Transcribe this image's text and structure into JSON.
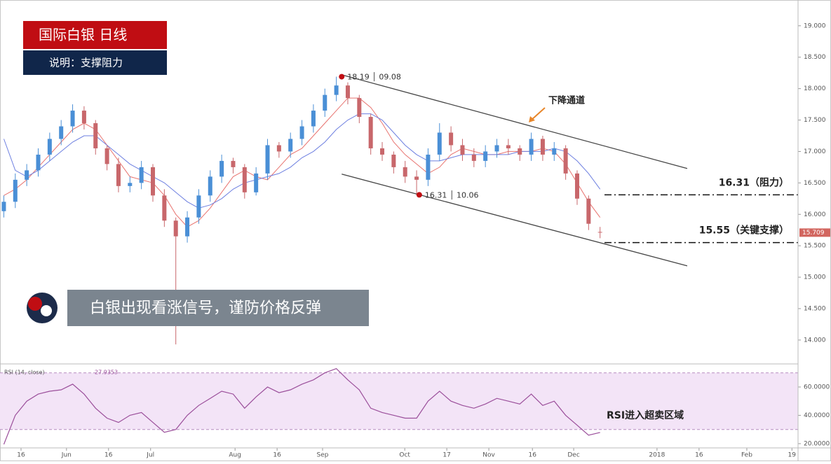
{
  "header": {
    "title": "国际白银  日线",
    "subtitle": "说明：支撑阻力"
  },
  "banner": "白银出现看涨信号，谨防价格反弹",
  "chart_data": [
    {
      "type": "candlestick",
      "x": [
        1,
        4,
        7,
        10,
        13,
        16,
        19,
        22,
        25,
        28,
        31,
        34,
        37,
        40,
        43,
        46,
        49,
        52,
        55,
        58,
        61,
        64,
        67,
        70,
        73,
        76,
        79,
        82,
        85,
        88,
        91,
        94,
        97,
        100,
        103,
        106,
        109,
        112,
        115,
        118,
        121,
        124,
        127,
        130,
        133,
        136,
        139,
        142,
        145,
        148,
        151,
        154,
        157
      ],
      "open": [
        16.05,
        16.2,
        16.55,
        16.7,
        16.95,
        17.2,
        17.4,
        17.65,
        17.45,
        17.05,
        16.8,
        16.45,
        16.5,
        16.75,
        16.3,
        15.9,
        15.65,
        15.95,
        16.3,
        16.6,
        16.85,
        16.75,
        16.35,
        16.65,
        17.1,
        17.0,
        17.2,
        17.4,
        17.65,
        17.9,
        18.05,
        17.85,
        17.55,
        17.05,
        16.95,
        16.75,
        16.6,
        16.55,
        16.95,
        17.3,
        17.1,
        16.95,
        16.85,
        17.0,
        17.1,
        17.05,
        16.95,
        17.2,
        16.95,
        17.05,
        16.65,
        16.25,
        15.72
      ],
      "high": [
        16.3,
        16.65,
        16.8,
        17.05,
        17.3,
        17.5,
        17.75,
        17.72,
        17.5,
        17.1,
        16.9,
        16.6,
        16.85,
        16.8,
        16.4,
        15.95,
        16.05,
        16.4,
        16.7,
        16.95,
        16.9,
        16.8,
        16.75,
        17.2,
        17.15,
        17.3,
        17.5,
        17.75,
        18.0,
        18.19,
        18.1,
        17.9,
        17.6,
        17.15,
        17.0,
        16.85,
        16.7,
        17.05,
        17.45,
        17.4,
        17.2,
        17.05,
        17.1,
        17.2,
        17.2,
        17.1,
        17.3,
        17.25,
        17.15,
        17.1,
        16.7,
        16.3,
        15.8
      ],
      "low": [
        15.95,
        16.1,
        16.45,
        16.6,
        16.85,
        17.1,
        17.3,
        17.35,
        16.95,
        16.7,
        16.35,
        16.35,
        16.4,
        16.2,
        15.8,
        13.93,
        15.55,
        15.85,
        16.2,
        16.5,
        16.65,
        16.25,
        16.3,
        16.55,
        16.9,
        16.9,
        17.1,
        17.3,
        17.55,
        17.8,
        17.75,
        17.45,
        16.95,
        16.85,
        16.65,
        16.5,
        16.31,
        16.45,
        16.85,
        17.0,
        16.85,
        16.75,
        16.75,
        16.9,
        16.95,
        16.85,
        16.85,
        16.85,
        16.85,
        16.55,
        16.15,
        15.75,
        15.62
      ],
      "close": [
        16.2,
        16.55,
        16.7,
        16.95,
        17.2,
        17.4,
        17.65,
        17.45,
        17.05,
        16.8,
        16.45,
        16.5,
        16.75,
        16.3,
        15.9,
        15.65,
        15.95,
        16.3,
        16.6,
        16.85,
        16.75,
        16.35,
        16.65,
        17.1,
        17.0,
        17.2,
        17.4,
        17.65,
        17.9,
        18.05,
        17.85,
        17.55,
        17.05,
        16.95,
        16.75,
        16.6,
        16.55,
        16.95,
        17.3,
        17.1,
        16.95,
        16.85,
        17.0,
        17.1,
        17.05,
        16.95,
        17.2,
        16.95,
        17.05,
        16.65,
        16.25,
        15.85,
        15.709
      ],
      "up_color": "#4a8fd6",
      "down_color": "#c8676b",
      "moving_averages": [
        {
          "color": "#e8736f",
          "values": [
            16.3,
            16.4,
            16.55,
            16.75,
            16.95,
            17.15,
            17.35,
            17.45,
            17.35,
            17.1,
            16.85,
            16.6,
            16.55,
            16.5,
            16.3,
            16.0,
            15.8,
            15.9,
            16.1,
            16.35,
            16.6,
            16.7,
            16.6,
            16.55,
            16.75,
            16.95,
            17.05,
            17.25,
            17.45,
            17.65,
            17.85,
            17.85,
            17.7,
            17.45,
            17.15,
            16.95,
            16.8,
            16.65,
            16.75,
            16.95,
            17.05,
            17.0,
            16.95,
            16.95,
            17.0,
            17.0,
            17.0,
            17.05,
            17.0,
            16.8,
            16.5,
            16.2,
            15.95
          ]
        },
        {
          "color": "#6d7fe0",
          "values": [
            17.2,
            16.7,
            16.6,
            16.7,
            16.85,
            17.0,
            17.15,
            17.25,
            17.25,
            17.1,
            16.95,
            16.8,
            16.7,
            16.6,
            16.5,
            16.35,
            16.2,
            16.1,
            16.15,
            16.25,
            16.4,
            16.5,
            16.55,
            16.6,
            16.65,
            16.75,
            16.9,
            17.0,
            17.15,
            17.35,
            17.5,
            17.6,
            17.6,
            17.5,
            17.3,
            17.1,
            16.95,
            16.85,
            16.85,
            16.9,
            16.95,
            16.95,
            16.95,
            16.95,
            16.95,
            17.0,
            17.0,
            17.0,
            17.05,
            17.0,
            16.85,
            16.65,
            16.4
          ]
        }
      ],
      "channel": [
        {
          "x": [
            89.4,
            179.8
          ],
          "y": [
            18.22,
            16.73
          ]
        },
        {
          "x": [
            89.4,
            179.8
          ],
          "y": [
            16.64,
            15.18
          ]
        }
      ],
      "channel_label": "下降通道",
      "markers": [
        {
          "x": 89.4,
          "value": 18.19,
          "label": "18.19 │ 09.08"
        },
        {
          "x": 109.7,
          "value": 16.31,
          "label": "16.31 │ 10.06"
        }
      ],
      "levels": [
        {
          "value": 16.31,
          "label": "16.31（阻力）"
        },
        {
          "value": 15.55,
          "label": "15.55（关键支撑）"
        }
      ],
      "xlim": [
        0,
        208.8
      ],
      "ylim": [
        13.62,
        19.41
      ],
      "yticks": [
        {
          "value": 14,
          "label": "14.000"
        },
        {
          "value": 14.5,
          "label": "14.500"
        },
        {
          "value": 15,
          "label": "15.000"
        },
        {
          "value": 15.5,
          "label": "15.500"
        },
        {
          "value": 16,
          "label": "16.000"
        },
        {
          "value": 16.5,
          "label": "16.500"
        },
        {
          "value": 17,
          "label": "17.000"
        },
        {
          "value": 17.5,
          "label": "17.500"
        },
        {
          "value": 18,
          "label": "18.000"
        },
        {
          "value": 18.5,
          "label": "18.500"
        },
        {
          "value": 19,
          "label": "19.000"
        }
      ]
    },
    {
      "type": "line",
      "title": "RSI (14, close)",
      "color": "#9b4f9b",
      "band": [
        30,
        70
      ],
      "band_color": "#f3e4f7",
      "annotation": "RSI进入超卖区域",
      "x": [
        1,
        4,
        7,
        10,
        13,
        16,
        19,
        22,
        25,
        28,
        31,
        34,
        37,
        40,
        43,
        46,
        49,
        52,
        55,
        58,
        61,
        64,
        67,
        70,
        73,
        76,
        79,
        82,
        85,
        88,
        91,
        94,
        97,
        100,
        103,
        106,
        109,
        112,
        115,
        118,
        121,
        124,
        127,
        130,
        133,
        136,
        139,
        142,
        145,
        148,
        151,
        154,
        157
      ],
      "values": [
        19.5,
        40,
        50,
        55,
        57,
        58,
        62,
        55,
        45,
        38,
        35,
        40,
        42,
        35,
        28,
        30,
        40,
        47,
        52,
        57,
        55,
        45,
        53,
        60,
        56,
        58,
        62,
        65,
        70,
        73,
        65,
        58,
        45,
        42,
        40,
        38,
        38,
        50,
        57,
        50,
        47,
        45,
        48,
        52,
        50,
        48,
        55,
        47,
        50,
        40,
        33,
        26,
        27.9353
      ],
      "xlim": [
        0,
        208.8
      ],
      "ylim": [
        17,
        75.3
      ],
      "yticks": [
        {
          "value": 20,
          "label": "20.0000"
        },
        {
          "value": 40,
          "label": "40.0000"
        },
        {
          "value": 60,
          "label": "60.0000"
        }
      ],
      "xticks": [
        {
          "value": 5.5,
          "label": "16"
        },
        {
          "value": 17.4,
          "label": "Jun"
        },
        {
          "value": 28.4,
          "label": "16"
        },
        {
          "value": 39.4,
          "label": "Jul"
        },
        {
          "value": 61.5,
          "label": "Aug"
        },
        {
          "value": 72.5,
          "label": "16"
        },
        {
          "value": 84.4,
          "label": "Sep"
        },
        {
          "value": 105.9,
          "label": "Oct"
        },
        {
          "value": 116.9,
          "label": "17"
        },
        {
          "value": 127.9,
          "label": "Nov"
        },
        {
          "value": 139.3,
          "label": "16"
        },
        {
          "value": 150.1,
          "label": "Dec"
        },
        {
          "value": 171.9,
          "label": "2018"
        },
        {
          "value": 182.9,
          "label": "16"
        },
        {
          "value": 195.4,
          "label": "Feb"
        },
        {
          "value": 207.2,
          "label": "19"
        }
      ]
    }
  ]
}
